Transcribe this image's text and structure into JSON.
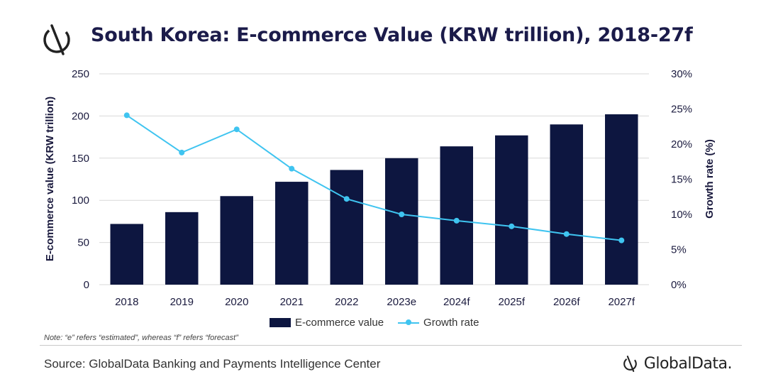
{
  "header": {
    "title": "South Korea: E-commerce Value (KRW trillion), 2018-27f"
  },
  "note": "Note: “e” refers “estimated”, whereas “f” refers “forecast”",
  "footer": {
    "source": "Source: GlobalData Banking and Payments Intelligence Center",
    "brand": "GlobalData."
  },
  "colors": {
    "bar": "#0d1640",
    "line": "#3fc4f0",
    "text": "#1a1a3e"
  },
  "chart_data": {
    "type": "bar+line",
    "title": "South Korea: E-commerce Value (KRW trillion), 2018-27f",
    "categories": [
      "2018",
      "2019",
      "2020",
      "2021",
      "2022",
      "2023e",
      "2024f",
      "2025f",
      "2026f",
      "2027f"
    ],
    "series": [
      {
        "name": "E-commerce value",
        "type": "bar",
        "axis": "left",
        "values": [
          72,
          86,
          105,
          122,
          136,
          150,
          164,
          177,
          190,
          202
        ]
      },
      {
        "name": "Growth rate",
        "type": "line",
        "axis": "right",
        "values": [
          24.1,
          18.8,
          22.1,
          16.5,
          12.2,
          10.0,
          9.1,
          8.3,
          7.2,
          6.3
        ]
      }
    ],
    "ylabel": "E-commerce value (KRW trillion)",
    "y2label": "Growth rate (%)",
    "ylim": [
      0,
      250
    ],
    "y2lim": [
      0,
      30
    ],
    "yticks": [
      "0",
      "50",
      "100",
      "150",
      "200",
      "250"
    ],
    "y2ticks": [
      "0%",
      "5%",
      "10%",
      "15%",
      "20%",
      "25%",
      "30%"
    ],
    "grid": true,
    "legend": "bottom-center"
  }
}
